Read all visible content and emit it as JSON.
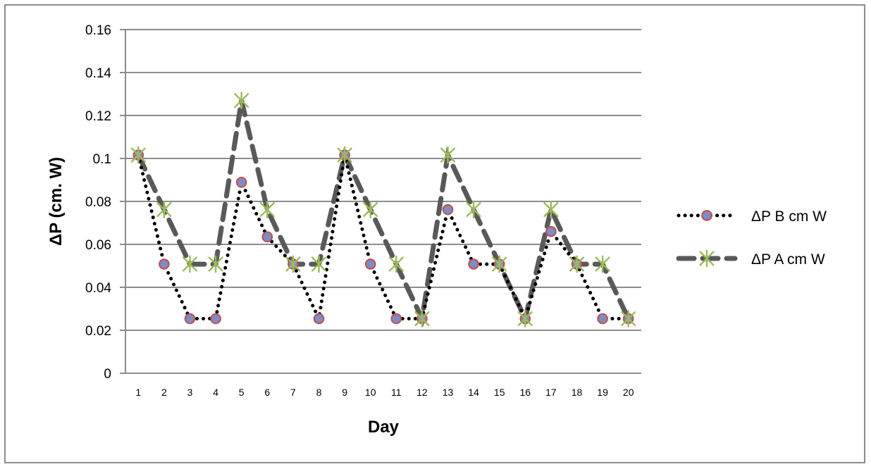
{
  "chart_data": {
    "type": "line",
    "title": "",
    "xlabel": "Day",
    "ylabel": "ΔP (cm. W)",
    "ylim": [
      0,
      0.16
    ],
    "yticks": [
      "0",
      "0.02",
      "0.04",
      "0.06",
      "0.08",
      "0.1",
      "0.12",
      "0.14",
      "0.16"
    ],
    "ytick_values": [
      0,
      0.02,
      0.04,
      0.06,
      0.08,
      0.1,
      0.12,
      0.14,
      0.16
    ],
    "categories": [
      "1",
      "2",
      "3",
      "4",
      "5",
      "6",
      "7",
      "8",
      "9",
      "10",
      "11",
      "12",
      "13",
      "14",
      "15",
      "16",
      "17",
      "18",
      "19",
      "20"
    ],
    "grid": true,
    "legend_position": "right",
    "series": [
      {
        "name": "ΔP B cm W",
        "line_style": "dotted",
        "marker": "circle",
        "line_color": "#000000",
        "marker_fill": "#7f8bc4",
        "marker_edge": "#c0504d",
        "values": [
          0.1016,
          0.0508,
          0.0254,
          0.0254,
          0.0889,
          0.0635,
          0.0508,
          0.0254,
          0.1016,
          0.0508,
          0.0254,
          0.0254,
          0.0762,
          0.0508,
          0.0508,
          0.0254,
          0.066,
          0.0508,
          0.0254,
          0.0254
        ]
      },
      {
        "name": "ΔP A cm W",
        "line_style": "dashed",
        "marker": "star",
        "line_color": "#595959",
        "marker_color": "#9bbb59",
        "values": [
          0.1016,
          0.0762,
          0.0508,
          0.0508,
          0.127,
          0.0762,
          0.0508,
          0.0508,
          0.1016,
          0.0762,
          0.0508,
          0.0254,
          0.1016,
          0.0762,
          0.0508,
          0.0254,
          0.0762,
          0.0508,
          0.0508,
          0.0254
        ]
      }
    ]
  }
}
